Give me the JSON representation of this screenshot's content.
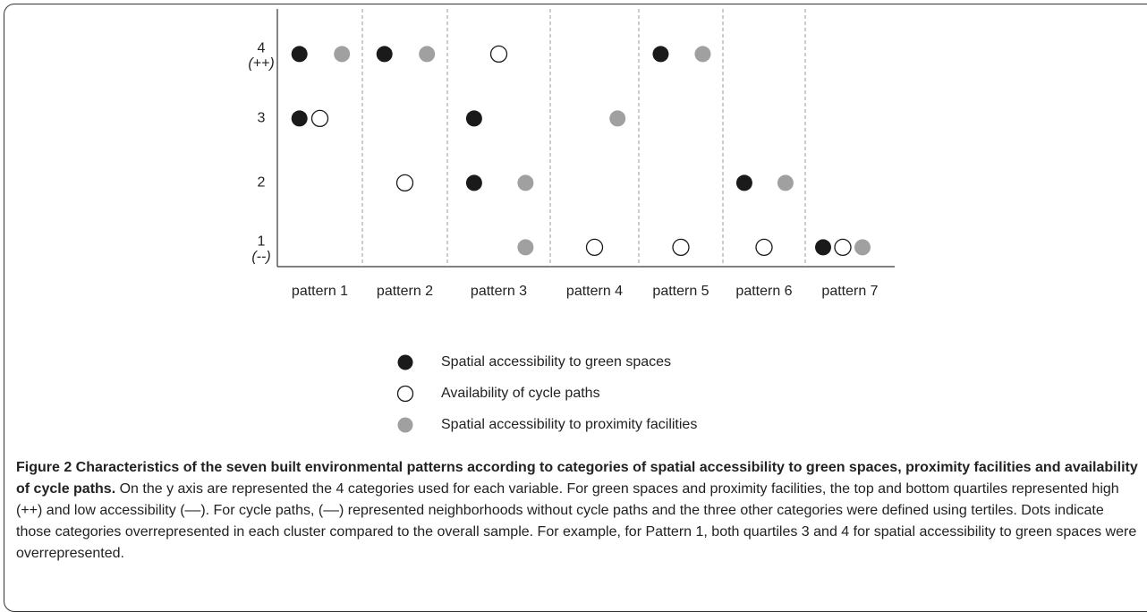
{
  "chart_data": {
    "type": "dot-matrix",
    "categories": [
      "pattern 1",
      "pattern 2",
      "pattern 3",
      "pattern 4",
      "pattern 5",
      "pattern 6",
      "pattern 7"
    ],
    "ylim": [
      0.7,
      4.7
    ],
    "yticks": [
      1,
      2,
      3,
      4
    ],
    "ytick_sublabels": [
      "(--)",
      null,
      null,
      "(++)"
    ],
    "series": [
      {
        "name": "Spatial accessibility to green spaces",
        "color": "#1a1a1a",
        "values": [
          [
            4,
            3
          ],
          [
            4
          ],
          [
            3,
            2
          ],
          [],
          [
            4
          ],
          [
            2
          ],
          [
            1
          ]
        ]
      },
      {
        "name": "Availability of cycle paths",
        "color": "#ffffff",
        "values": [
          [
            3
          ],
          [
            2
          ],
          [
            4
          ],
          [
            1
          ],
          [
            1
          ],
          [
            1
          ],
          [
            1
          ]
        ]
      },
      {
        "name": "Spatial accessibility to proximity facilities",
        "color": "#a0a0a0",
        "values": [
          [
            4
          ],
          [
            4
          ],
          [
            2,
            1
          ],
          [
            3
          ],
          [
            4
          ],
          [
            2
          ],
          [
            1
          ]
        ]
      }
    ]
  },
  "caption": {
    "title": "Figure 2 Characteristics of the seven built environmental patterns according to categories of spatial accessibility to green spaces, proximity facilities and availability of cycle paths.",
    "text": "On the y axis are represented the 4 categories used for each variable. For green spaces and proximity facilities, the top and bottom quartiles represented high (++) and low accessibility (––). For cycle paths, (––) represented neighborhoods without cycle paths and the three other categories were defined using tertiles. Dots indicate those categories overrepresented in each cluster compared to the overall sample. For example, for Pattern 1, both quartiles 3 and 4 for spatial accessibility to green spaces were overrepresented."
  }
}
